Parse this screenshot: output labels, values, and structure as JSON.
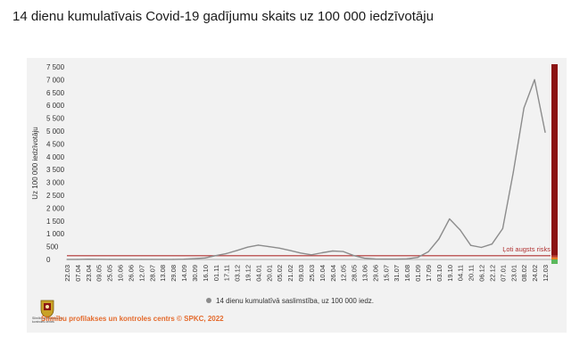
{
  "header": {
    "title": "14 dienu kumulatīvais Covid-19 gadījumu skaits uz 100 000 iedzīvotāju"
  },
  "footer": {
    "source": "Slimību profilakses un kontroles centrs © SPKC, 2022",
    "logo_caption": "Slimību profilakses un kontroles centrs"
  },
  "chart_data": {
    "type": "line",
    "title": "",
    "ylabel": "Uz 100 000 iedzīvotāju",
    "ylim": [
      0,
      7500
    ],
    "yticks": [
      0,
      500,
      1000,
      1500,
      2000,
      2500,
      3000,
      3500,
      4000,
      4500,
      5000,
      5500,
      6000,
      6500,
      7000,
      7500
    ],
    "ytick_labels": [
      "0",
      "500",
      "1 000",
      "1 500",
      "2 000",
      "2 500",
      "3 000",
      "3 500",
      "4 000",
      "4 500",
      "5 000",
      "5 500",
      "6 000",
      "6 500",
      "7 000",
      "7 500"
    ],
    "categories": [
      "22.03",
      "07.04",
      "23.04",
      "09.05",
      "25.05",
      "10.06",
      "26.06",
      "12.07",
      "28.07",
      "13.08",
      "29.08",
      "14.09",
      "30.09",
      "16.10",
      "01.11",
      "17.11",
      "03.12",
      "19.12",
      "04.01",
      "20.01",
      "05.02",
      "21.02",
      "09.03",
      "25.03",
      "10.04",
      "26.04",
      "12.05",
      "28.05",
      "13.06",
      "29.06",
      "15.07",
      "31.07",
      "16.08",
      "01.09",
      "17.09",
      "03.10",
      "19.10",
      "04.11",
      "20.11",
      "06.12",
      "22.12",
      "07.01",
      "23.01",
      "08.02",
      "24.02",
      "12.03"
    ],
    "series": [
      {
        "name": "14 dienu kumulatīvā saslimstība, uz 100 000 iedz.",
        "color": "#8c8c8c",
        "values": [
          2,
          5,
          10,
          8,
          5,
          3,
          2,
          2,
          2,
          3,
          5,
          10,
          30,
          60,
          150,
          230,
          350,
          480,
          560,
          500,
          440,
          350,
          250,
          180,
          260,
          330,
          310,
          150,
          50,
          20,
          15,
          15,
          25,
          80,
          300,
          800,
          1580,
          1150,
          550,
          470,
          600,
          1200,
          3400,
          5900,
          7000,
          4950
        ]
      }
    ],
    "risk_threshold": {
      "label": "Ļoti augsts risks",
      "value": 250,
      "color": "#b03030"
    },
    "risk_bar_colors": [
      "#8b1414",
      "#c0392b",
      "#e67e22",
      "#5cb85c"
    ],
    "legend_position": "bottom",
    "grid": false
  }
}
